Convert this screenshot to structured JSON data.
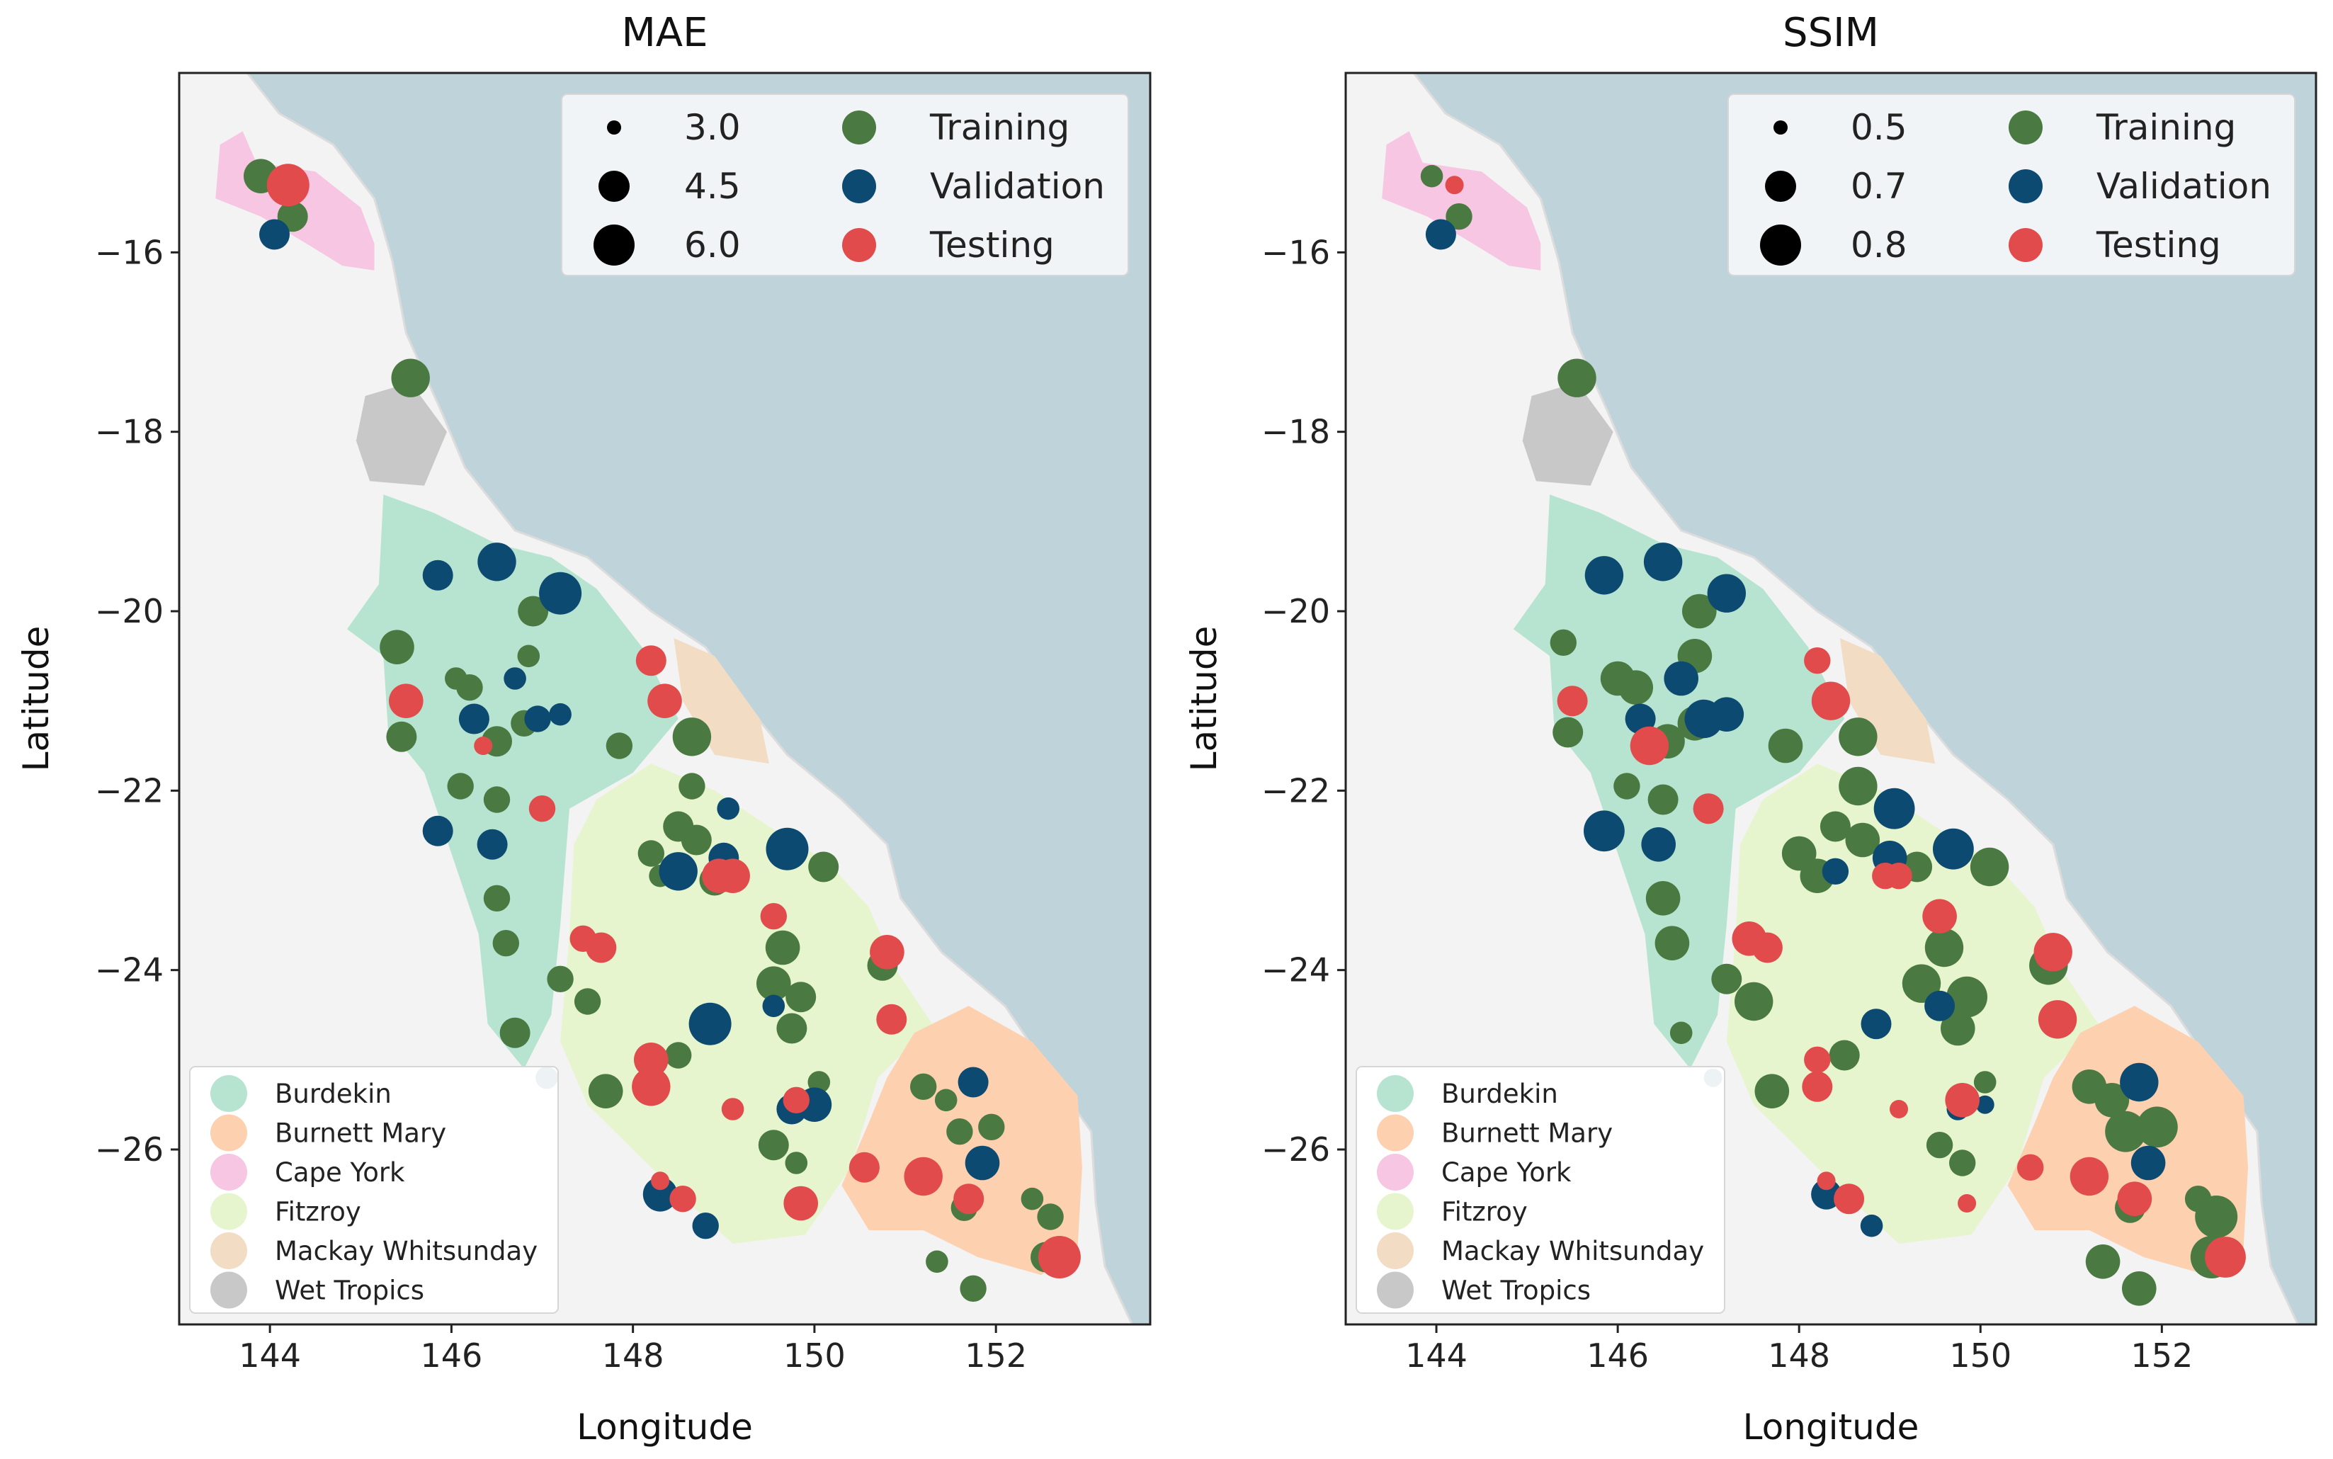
{
  "figure": {
    "xlabel": "Longitude",
    "ylabel": "Latitude",
    "xticks": [
      144,
      146,
      148,
      150,
      152
    ],
    "yticks": [
      -16,
      -18,
      -20,
      -22,
      -24,
      -26
    ],
    "xlim": [
      143.0,
      153.7
    ],
    "ylim": [
      -27.95,
      -14.0
    ],
    "colors": {
      "training": "#4a7a42",
      "validation": "#0d4a72",
      "testing": "#e24b4b",
      "ocean": "#bfd3da",
      "land": "#f3f3f3"
    },
    "split_legend": [
      "Training",
      "Validation",
      "Testing"
    ],
    "regions_legend": [
      {
        "label": "Burdekin",
        "color": "#b7e4d0"
      },
      {
        "label": "Burnett Mary",
        "color": "#fdd0b0"
      },
      {
        "label": "Cape York",
        "color": "#f6c6e2"
      },
      {
        "label": "Fitzroy",
        "color": "#e6f5cd"
      },
      {
        "label": "Mackay Whitsunday",
        "color": "#f3dcc4"
      },
      {
        "label": "Wet Tropics",
        "color": "#c8c8c8"
      }
    ]
  },
  "chart_data": [
    {
      "type": "scatter",
      "title": "MAE",
      "xlabel": "Longitude",
      "ylabel": "Latitude",
      "size_legend": [
        {
          "label": "3.0",
          "value": 3.0
        },
        {
          "label": "4.5",
          "value": 4.5
        },
        {
          "label": "6.0",
          "value": 6.0
        }
      ],
      "size_range": [
        3.0,
        6.0
      ],
      "series": [
        {
          "name": "Training",
          "points": [
            [
              143.9,
              -15.15,
              5.0
            ],
            [
              144.25,
              -15.6,
              4.5
            ],
            [
              145.55,
              -17.4,
              5.5
            ],
            [
              145.4,
              -20.4,
              5.0
            ],
            [
              145.45,
              -21.4,
              4.5
            ],
            [
              146.05,
              -20.75,
              3.5
            ],
            [
              146.2,
              -20.85,
              4.0
            ],
            [
              146.9,
              -20.0,
              4.5
            ],
            [
              146.85,
              -20.5,
              3.5
            ],
            [
              146.5,
              -21.45,
              4.5
            ],
            [
              146.8,
              -21.25,
              4.0
            ],
            [
              146.1,
              -21.95,
              4.0
            ],
            [
              146.5,
              -22.1,
              4.0
            ],
            [
              146.5,
              -23.2,
              4.0
            ],
            [
              146.6,
              -23.7,
              4.0
            ],
            [
              146.7,
              -24.7,
              4.5
            ],
            [
              147.2,
              -24.1,
              4.0
            ],
            [
              147.5,
              -24.35,
              4.0
            ],
            [
              147.7,
              -25.35,
              5.0
            ],
            [
              147.85,
              -21.5,
              4.0
            ],
            [
              148.2,
              -22.7,
              4.0
            ],
            [
              148.3,
              -22.95,
              3.5
            ],
            [
              148.5,
              -22.4,
              4.5
            ],
            [
              148.65,
              -21.4,
              5.5
            ],
            [
              148.65,
              -21.95,
              4.0
            ],
            [
              148.7,
              -22.55,
              4.5
            ],
            [
              148.9,
              -23.0,
              4.5
            ],
            [
              149.55,
              -24.15,
              5.0
            ],
            [
              149.65,
              -23.75,
              5.0
            ],
            [
              149.75,
              -24.65,
              4.5
            ],
            [
              149.85,
              -24.3,
              4.5
            ],
            [
              150.1,
              -22.85,
              4.5
            ],
            [
              150.05,
              -25.25,
              3.5
            ],
            [
              149.55,
              -25.95,
              4.5
            ],
            [
              149.8,
              -26.15,
              3.5
            ],
            [
              150.75,
              -23.95,
              4.5
            ],
            [
              151.2,
              -25.3,
              4.0
            ],
            [
              151.45,
              -25.45,
              3.5
            ],
            [
              151.6,
              -25.8,
              4.0
            ],
            [
              151.95,
              -25.75,
              4.0
            ],
            [
              151.65,
              -26.65,
              4.0
            ],
            [
              151.75,
              -27.55,
              4.0
            ],
            [
              151.35,
              -27.25,
              3.5
            ],
            [
              152.4,
              -26.55,
              3.5
            ],
            [
              152.6,
              -26.75,
              4.0
            ],
            [
              152.55,
              -27.2,
              4.5
            ],
            [
              148.5,
              -24.95,
              4.0
            ]
          ]
        },
        {
          "name": "Validation",
          "points": [
            [
              144.05,
              -15.8,
              4.5
            ],
            [
              145.85,
              -19.6,
              4.5
            ],
            [
              146.5,
              -19.45,
              5.5
            ],
            [
              147.2,
              -19.8,
              6.0
            ],
            [
              146.25,
              -21.2,
              4.5
            ],
            [
              146.7,
              -20.75,
              3.5
            ],
            [
              146.95,
              -21.2,
              4.0
            ],
            [
              147.2,
              -21.15,
              3.5
            ],
            [
              145.85,
              -22.45,
              4.5
            ],
            [
              146.45,
              -22.6,
              4.5
            ],
            [
              149.05,
              -22.2,
              3.5
            ],
            [
              148.5,
              -22.9,
              5.5
            ],
            [
              149.0,
              -22.75,
              4.5
            ],
            [
              149.7,
              -22.65,
              6.0
            ],
            [
              148.85,
              -24.6,
              6.0
            ],
            [
              149.55,
              -24.4,
              3.5
            ],
            [
              149.75,
              -25.55,
              4.5
            ],
            [
              150.0,
              -25.5,
              5.0
            ],
            [
              148.3,
              -26.5,
              5.0
            ],
            [
              148.8,
              -26.85,
              4.0
            ],
            [
              151.75,
              -25.25,
              4.5
            ],
            [
              151.85,
              -26.15,
              5.0
            ],
            [
              147.05,
              -25.2,
              3.5
            ]
          ]
        },
        {
          "name": "Testing",
          "points": [
            [
              144.2,
              -15.25,
              6.0
            ],
            [
              145.5,
              -21.0,
              5.0
            ],
            [
              146.35,
              -21.5,
              3.0
            ],
            [
              147.0,
              -22.2,
              4.0
            ],
            [
              147.45,
              -23.65,
              4.0
            ],
            [
              147.65,
              -23.75,
              4.5
            ],
            [
              148.2,
              -20.55,
              4.5
            ],
            [
              148.35,
              -21.0,
              5.0
            ],
            [
              148.95,
              -22.95,
              5.0
            ],
            [
              149.1,
              -22.95,
              5.0
            ],
            [
              149.55,
              -23.4,
              4.0
            ],
            [
              148.2,
              -25.0,
              5.0
            ],
            [
              148.2,
              -25.3,
              5.5
            ],
            [
              149.1,
              -25.55,
              3.5
            ],
            [
              149.8,
              -25.45,
              4.0
            ],
            [
              149.85,
              -26.6,
              5.0
            ],
            [
              150.8,
              -23.8,
              5.0
            ],
            [
              150.85,
              -24.55,
              4.5
            ],
            [
              150.55,
              -26.2,
              4.5
            ],
            [
              151.2,
              -26.3,
              5.5
            ],
            [
              151.7,
              -26.55,
              4.5
            ],
            [
              152.7,
              -27.2,
              6.0
            ],
            [
              148.3,
              -26.35,
              3.0
            ],
            [
              148.55,
              -26.55,
              4.0
            ]
          ]
        }
      ]
    },
    {
      "type": "scatter",
      "title": "SSIM",
      "xlabel": "Longitude",
      "ylabel": "Latitude",
      "size_legend": [
        {
          "label": "0.5",
          "value": 0.5
        },
        {
          "label": "0.7",
          "value": 0.7
        },
        {
          "label": "0.8",
          "value": 0.8
        }
      ],
      "size_range": [
        0.5,
        0.8
      ],
      "series": [
        {
          "name": "Training",
          "points": [
            [
              143.95,
              -15.15,
              0.55
            ],
            [
              144.25,
              -15.6,
              0.6
            ],
            [
              145.55,
              -17.4,
              0.75
            ],
            [
              145.4,
              -20.35,
              0.6
            ],
            [
              145.45,
              -21.35,
              0.65
            ],
            [
              146.0,
              -20.75,
              0.7
            ],
            [
              146.2,
              -20.85,
              0.7
            ],
            [
              146.9,
              -20.0,
              0.7
            ],
            [
              146.85,
              -20.5,
              0.7
            ],
            [
              146.55,
              -21.45,
              0.7
            ],
            [
              146.85,
              -21.25,
              0.7
            ],
            [
              146.1,
              -21.95,
              0.6
            ],
            [
              146.5,
              -22.1,
              0.65
            ],
            [
              146.5,
              -23.2,
              0.7
            ],
            [
              146.6,
              -23.7,
              0.7
            ],
            [
              146.7,
              -24.7,
              0.55
            ],
            [
              147.2,
              -24.1,
              0.65
            ],
            [
              147.5,
              -24.35,
              0.75
            ],
            [
              147.7,
              -25.35,
              0.7
            ],
            [
              147.85,
              -21.5,
              0.7
            ],
            [
              148.0,
              -22.7,
              0.7
            ],
            [
              148.2,
              -22.95,
              0.7
            ],
            [
              148.4,
              -22.4,
              0.65
            ],
            [
              148.65,
              -21.4,
              0.75
            ],
            [
              148.65,
              -21.95,
              0.75
            ],
            [
              148.7,
              -22.55,
              0.7
            ],
            [
              149.3,
              -22.85,
              0.65
            ],
            [
              149.35,
              -24.15,
              0.75
            ],
            [
              149.6,
              -23.75,
              0.75
            ],
            [
              149.75,
              -24.65,
              0.7
            ],
            [
              149.85,
              -24.3,
              0.78
            ],
            [
              150.1,
              -22.85,
              0.75
            ],
            [
              150.05,
              -25.25,
              0.55
            ],
            [
              149.55,
              -25.95,
              0.6
            ],
            [
              149.8,
              -26.15,
              0.6
            ],
            [
              150.75,
              -23.95,
              0.75
            ],
            [
              151.2,
              -25.3,
              0.7
            ],
            [
              151.45,
              -25.45,
              0.7
            ],
            [
              151.6,
              -25.8,
              0.78
            ],
            [
              151.95,
              -25.75,
              0.78
            ],
            [
              151.65,
              -26.65,
              0.65
            ],
            [
              151.75,
              -27.55,
              0.7
            ],
            [
              151.35,
              -27.25,
              0.7
            ],
            [
              152.4,
              -26.55,
              0.6
            ],
            [
              152.6,
              -26.75,
              0.8
            ],
            [
              152.55,
              -27.2,
              0.8
            ],
            [
              148.5,
              -24.95,
              0.65
            ]
          ]
        },
        {
          "name": "Validation",
          "points": [
            [
              144.05,
              -15.8,
              0.65
            ],
            [
              145.85,
              -19.6,
              0.75
            ],
            [
              146.5,
              -19.45,
              0.75
            ],
            [
              147.2,
              -19.8,
              0.75
            ],
            [
              146.25,
              -21.2,
              0.65
            ],
            [
              146.7,
              -20.75,
              0.7
            ],
            [
              146.95,
              -21.2,
              0.75
            ],
            [
              147.2,
              -21.15,
              0.7
            ],
            [
              145.85,
              -22.45,
              0.78
            ],
            [
              146.45,
              -22.6,
              0.7
            ],
            [
              149.05,
              -22.2,
              0.78
            ],
            [
              148.4,
              -22.9,
              0.6
            ],
            [
              149.0,
              -22.75,
              0.7
            ],
            [
              149.7,
              -22.65,
              0.78
            ],
            [
              148.85,
              -24.6,
              0.65
            ],
            [
              149.55,
              -24.4,
              0.65
            ],
            [
              149.75,
              -25.55,
              0.55
            ],
            [
              150.05,
              -25.5,
              0.5
            ],
            [
              148.3,
              -26.5,
              0.65
            ],
            [
              148.8,
              -26.85,
              0.55
            ],
            [
              151.75,
              -25.25,
              0.75
            ],
            [
              151.85,
              -26.15,
              0.7
            ],
            [
              147.05,
              -25.2,
              0.5
            ]
          ]
        },
        {
          "name": "Testing",
          "points": [
            [
              144.2,
              -15.25,
              0.5
            ],
            [
              145.5,
              -21.0,
              0.65
            ],
            [
              146.35,
              -21.5,
              0.75
            ],
            [
              147.0,
              -22.2,
              0.65
            ],
            [
              147.45,
              -23.65,
              0.7
            ],
            [
              147.65,
              -23.75,
              0.65
            ],
            [
              148.2,
              -20.55,
              0.6
            ],
            [
              148.35,
              -21.0,
              0.75
            ],
            [
              148.95,
              -22.95,
              0.6
            ],
            [
              149.1,
              -22.95,
              0.6
            ],
            [
              149.55,
              -23.4,
              0.7
            ],
            [
              148.2,
              -25.0,
              0.6
            ],
            [
              148.2,
              -25.3,
              0.65
            ],
            [
              149.1,
              -25.55,
              0.5
            ],
            [
              149.8,
              -25.45,
              0.7
            ],
            [
              149.85,
              -26.6,
              0.5
            ],
            [
              150.8,
              -23.8,
              0.75
            ],
            [
              150.85,
              -24.55,
              0.75
            ],
            [
              150.55,
              -26.2,
              0.6
            ],
            [
              151.2,
              -26.3,
              0.75
            ],
            [
              151.7,
              -26.55,
              0.7
            ],
            [
              152.7,
              -27.2,
              0.78
            ],
            [
              148.3,
              -26.35,
              0.5
            ],
            [
              148.55,
              -26.55,
              0.65
            ]
          ]
        }
      ]
    }
  ]
}
